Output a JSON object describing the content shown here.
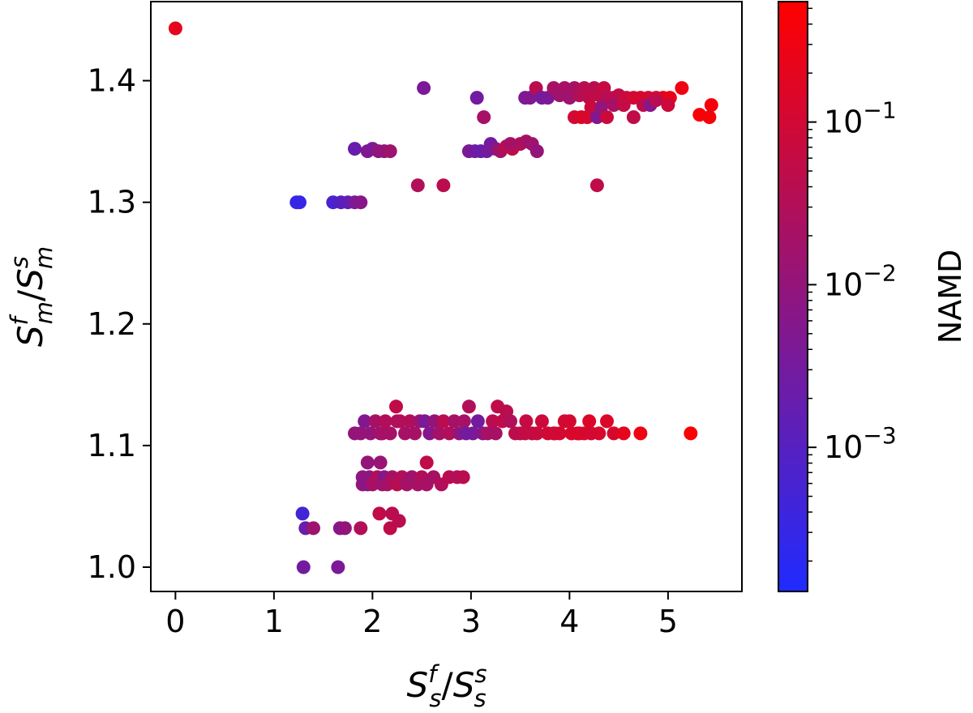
{
  "chart_data": {
    "type": "scatter",
    "xlabel": {
      "base": "S",
      "sup": "f",
      "sub": "s",
      "slash": "/",
      "base2": "S",
      "sup2": "s",
      "sub2": "s"
    },
    "ylabel": {
      "base": "S",
      "sup": "f",
      "sub": "m",
      "slash": "/",
      "base2": "S",
      "sup2": "s",
      "sub2": "m"
    },
    "xlim": [
      -0.25,
      5.75
    ],
    "ylim": [
      0.98,
      1.465
    ],
    "x_ticks": [
      0,
      1,
      2,
      3,
      4,
      5
    ],
    "x_tick_labels": [
      "0",
      "1",
      "2",
      "3",
      "4",
      "5"
    ],
    "y_ticks": [
      1.0,
      1.1,
      1.2,
      1.3,
      1.4
    ],
    "y_tick_labels": [
      "1.0",
      "1.1",
      "1.2",
      "1.3",
      "1.4"
    ],
    "grid": false,
    "colorbar": {
      "label": "NAMD",
      "scale": "log",
      "range": [
        0.00013,
        0.55
      ],
      "ticks": [
        0.001,
        0.01,
        0.1
      ],
      "tick_labels": [
        {
          "base": "10",
          "exp": "−3"
        },
        {
          "base": "10",
          "exp": "−2"
        },
        {
          "base": "10",
          "exp": "−1"
        }
      ],
      "color_low": "#1f2bff",
      "color_high": "#ff0000"
    },
    "points": [
      {
        "x": 0.0,
        "y": 1.443,
        "c": 0.2
      },
      {
        "x": 1.23,
        "y": 1.3,
        "c": 0.0003
      },
      {
        "x": 1.26,
        "y": 1.3,
        "c": 0.0003
      },
      {
        "x": 1.6,
        "y": 1.3,
        "c": 0.0006
      },
      {
        "x": 1.68,
        "y": 1.3,
        "c": 0.001
      },
      {
        "x": 1.75,
        "y": 1.3,
        "c": 0.0015
      },
      {
        "x": 1.82,
        "y": 1.3,
        "c": 0.004
      },
      {
        "x": 1.88,
        "y": 1.3,
        "c": 0.006
      },
      {
        "x": 1.82,
        "y": 1.344,
        "c": 0.002
      },
      {
        "x": 1.95,
        "y": 1.342,
        "c": 0.005
      },
      {
        "x": 2.0,
        "y": 1.344,
        "c": 0.004
      },
      {
        "x": 2.06,
        "y": 1.342,
        "c": 0.009
      },
      {
        "x": 2.12,
        "y": 1.342,
        "c": 0.01
      },
      {
        "x": 2.18,
        "y": 1.342,
        "c": 0.015
      },
      {
        "x": 2.46,
        "y": 1.314,
        "c": 0.03
      },
      {
        "x": 2.72,
        "y": 1.314,
        "c": 0.04
      },
      {
        "x": 2.52,
        "y": 1.394,
        "c": 0.004
      },
      {
        "x": 3.06,
        "y": 1.386,
        "c": 0.003
      },
      {
        "x": 3.13,
        "y": 1.37,
        "c": 0.02
      },
      {
        "x": 2.98,
        "y": 1.342,
        "c": 0.004
      },
      {
        "x": 3.04,
        "y": 1.342,
        "c": 0.003
      },
      {
        "x": 3.1,
        "y": 1.342,
        "c": 0.002
      },
      {
        "x": 3.16,
        "y": 1.342,
        "c": 0.003
      },
      {
        "x": 3.2,
        "y": 1.348,
        "c": 0.003
      },
      {
        "x": 3.25,
        "y": 1.344,
        "c": 0.006
      },
      {
        "x": 3.3,
        "y": 1.342,
        "c": 0.02
      },
      {
        "x": 3.36,
        "y": 1.346,
        "c": 0.04
      },
      {
        "x": 3.42,
        "y": 1.344,
        "c": 0.05
      },
      {
        "x": 3.5,
        "y": 1.348,
        "c": 0.03
      },
      {
        "x": 3.56,
        "y": 1.35,
        "c": 0.02
      },
      {
        "x": 3.62,
        "y": 1.348,
        "c": 0.015
      },
      {
        "x": 3.4,
        "y": 1.348,
        "c": 0.02
      },
      {
        "x": 3.67,
        "y": 1.342,
        "c": 0.01
      },
      {
        "x": 4.28,
        "y": 1.314,
        "c": 0.05
      },
      {
        "x": 3.55,
        "y": 1.386,
        "c": 0.004
      },
      {
        "x": 3.6,
        "y": 1.386,
        "c": 0.005
      },
      {
        "x": 3.66,
        "y": 1.394,
        "c": 0.04
      },
      {
        "x": 3.72,
        "y": 1.386,
        "c": 0.003
      },
      {
        "x": 3.78,
        "y": 1.386,
        "c": 0.004
      },
      {
        "x": 3.84,
        "y": 1.394,
        "c": 0.02
      },
      {
        "x": 3.9,
        "y": 1.388,
        "c": 0.015
      },
      {
        "x": 3.95,
        "y": 1.394,
        "c": 0.02
      },
      {
        "x": 4.0,
        "y": 1.386,
        "c": 0.015
      },
      {
        "x": 4.05,
        "y": 1.394,
        "c": 0.02
      },
      {
        "x": 4.1,
        "y": 1.388,
        "c": 0.03
      },
      {
        "x": 4.15,
        "y": 1.394,
        "c": 0.04
      },
      {
        "x": 4.2,
        "y": 1.386,
        "c": 0.05
      },
      {
        "x": 4.25,
        "y": 1.394,
        "c": 0.04
      },
      {
        "x": 4.3,
        "y": 1.388,
        "c": 0.05
      },
      {
        "x": 4.35,
        "y": 1.394,
        "c": 0.06
      },
      {
        "x": 4.4,
        "y": 1.386,
        "c": 0.03
      },
      {
        "x": 4.45,
        "y": 1.386,
        "c": 0.04
      },
      {
        "x": 4.5,
        "y": 1.388,
        "c": 0.05
      },
      {
        "x": 4.58,
        "y": 1.386,
        "c": 0.08
      },
      {
        "x": 4.65,
        "y": 1.386,
        "c": 0.1
      },
      {
        "x": 4.72,
        "y": 1.386,
        "c": 0.12
      },
      {
        "x": 4.8,
        "y": 1.386,
        "c": 0.1
      },
      {
        "x": 4.88,
        "y": 1.386,
        "c": 0.15
      },
      {
        "x": 4.95,
        "y": 1.386,
        "c": 0.2
      },
      {
        "x": 5.02,
        "y": 1.386,
        "c": 0.25
      },
      {
        "x": 5.14,
        "y": 1.394,
        "c": 0.3
      },
      {
        "x": 4.05,
        "y": 1.37,
        "c": 0.1
      },
      {
        "x": 4.12,
        "y": 1.37,
        "c": 0.15
      },
      {
        "x": 4.18,
        "y": 1.37,
        "c": 0.12
      },
      {
        "x": 4.22,
        "y": 1.378,
        "c": 0.08
      },
      {
        "x": 4.28,
        "y": 1.37,
        "c": 0.005
      },
      {
        "x": 4.32,
        "y": 1.378,
        "c": 0.01
      },
      {
        "x": 4.38,
        "y": 1.37,
        "c": 0.08
      },
      {
        "x": 4.45,
        "y": 1.38,
        "c": 0.02
      },
      {
        "x": 4.55,
        "y": 1.38,
        "c": 0.06
      },
      {
        "x": 4.65,
        "y": 1.37,
        "c": 0.05
      },
      {
        "x": 4.75,
        "y": 1.38,
        "c": 0.05
      },
      {
        "x": 4.82,
        "y": 1.38,
        "c": 0.006
      },
      {
        "x": 4.88,
        "y": 1.384,
        "c": 0.04
      },
      {
        "x": 5.0,
        "y": 1.38,
        "c": 0.08
      },
      {
        "x": 5.32,
        "y": 1.372,
        "c": 0.45
      },
      {
        "x": 5.42,
        "y": 1.37,
        "c": 0.4
      },
      {
        "x": 5.44,
        "y": 1.38,
        "c": 0.35
      },
      {
        "x": 1.29,
        "y": 1.044,
        "c": 0.0005
      },
      {
        "x": 1.32,
        "y": 1.032,
        "c": 0.002
      },
      {
        "x": 1.4,
        "y": 1.032,
        "c": 0.015
      },
      {
        "x": 1.3,
        "y": 1.0,
        "c": 0.003
      },
      {
        "x": 1.65,
        "y": 1.0,
        "c": 0.004
      },
      {
        "x": 1.67,
        "y": 1.032,
        "c": 0.006
      },
      {
        "x": 1.72,
        "y": 1.032,
        "c": 0.01
      },
      {
        "x": 1.88,
        "y": 1.032,
        "c": 0.03
      },
      {
        "x": 2.07,
        "y": 1.044,
        "c": 0.05
      },
      {
        "x": 2.2,
        "y": 1.044,
        "c": 0.04
      },
      {
        "x": 2.18,
        "y": 1.032,
        "c": 0.05
      },
      {
        "x": 2.27,
        "y": 1.038,
        "c": 0.04
      },
      {
        "x": 1.9,
        "y": 1.068,
        "c": 0.01
      },
      {
        "x": 1.9,
        "y": 1.074,
        "c": 0.008
      },
      {
        "x": 1.95,
        "y": 1.068,
        "c": 0.006
      },
      {
        "x": 1.97,
        "y": 1.074,
        "c": 0.008
      },
      {
        "x": 1.95,
        "y": 1.086,
        "c": 0.01
      },
      {
        "x": 2.0,
        "y": 1.068,
        "c": 0.02
      },
      {
        "x": 2.05,
        "y": 1.074,
        "c": 0.03
      },
      {
        "x": 2.1,
        "y": 1.068,
        "c": 0.015
      },
      {
        "x": 2.08,
        "y": 1.086,
        "c": 0.012
      },
      {
        "x": 2.12,
        "y": 1.074,
        "c": 0.006
      },
      {
        "x": 2.15,
        "y": 1.068,
        "c": 0.02
      },
      {
        "x": 2.2,
        "y": 1.074,
        "c": 0.02
      },
      {
        "x": 2.25,
        "y": 1.068,
        "c": 0.04
      },
      {
        "x": 2.3,
        "y": 1.074,
        "c": 0.03
      },
      {
        "x": 2.35,
        "y": 1.068,
        "c": 0.02
      },
      {
        "x": 2.4,
        "y": 1.074,
        "c": 0.015
      },
      {
        "x": 2.46,
        "y": 1.068,
        "c": 0.02
      },
      {
        "x": 2.5,
        "y": 1.074,
        "c": 0.03
      },
      {
        "x": 2.55,
        "y": 1.086,
        "c": 0.05
      },
      {
        "x": 2.55,
        "y": 1.068,
        "c": 0.02
      },
      {
        "x": 2.62,
        "y": 1.074,
        "c": 0.02
      },
      {
        "x": 2.7,
        "y": 1.068,
        "c": 0.03
      },
      {
        "x": 2.78,
        "y": 1.074,
        "c": 0.04
      },
      {
        "x": 2.86,
        "y": 1.074,
        "c": 0.03
      },
      {
        "x": 2.92,
        "y": 1.074,
        "c": 0.04
      },
      {
        "x": 1.82,
        "y": 1.11,
        "c": 0.01
      },
      {
        "x": 1.88,
        "y": 1.11,
        "c": 0.01
      },
      {
        "x": 1.92,
        "y": 1.12,
        "c": 0.005
      },
      {
        "x": 1.98,
        "y": 1.11,
        "c": 0.01
      },
      {
        "x": 2.03,
        "y": 1.12,
        "c": 0.02
      },
      {
        "x": 2.08,
        "y": 1.11,
        "c": 0.015
      },
      {
        "x": 2.13,
        "y": 1.12,
        "c": 0.03
      },
      {
        "x": 2.18,
        "y": 1.11,
        "c": 0.02
      },
      {
        "x": 2.24,
        "y": 1.132,
        "c": 0.05
      },
      {
        "x": 2.28,
        "y": 1.12,
        "c": 0.04
      },
      {
        "x": 2.33,
        "y": 1.11,
        "c": 0.02
      },
      {
        "x": 2.38,
        "y": 1.12,
        "c": 0.03
      },
      {
        "x": 2.43,
        "y": 1.11,
        "c": 0.02
      },
      {
        "x": 2.48,
        "y": 1.12,
        "c": 0.015
      },
      {
        "x": 2.53,
        "y": 1.12,
        "c": 0.004
      },
      {
        "x": 2.58,
        "y": 1.11,
        "c": 0.006
      },
      {
        "x": 2.63,
        "y": 1.12,
        "c": 0.01
      },
      {
        "x": 2.68,
        "y": 1.11,
        "c": 0.02
      },
      {
        "x": 2.72,
        "y": 1.12,
        "c": 0.04
      },
      {
        "x": 2.78,
        "y": 1.11,
        "c": 0.03
      },
      {
        "x": 2.83,
        "y": 1.12,
        "c": 0.02
      },
      {
        "x": 2.88,
        "y": 1.11,
        "c": 0.01
      },
      {
        "x": 2.93,
        "y": 1.12,
        "c": 0.02
      },
      {
        "x": 2.98,
        "y": 1.132,
        "c": 0.03
      },
      {
        "x": 3.02,
        "y": 1.11,
        "c": 0.004
      },
      {
        "x": 3.07,
        "y": 1.12,
        "c": 0.003
      },
      {
        "x": 3.12,
        "y": 1.11,
        "c": 0.006
      },
      {
        "x": 3.17,
        "y": 1.11,
        "c": 0.02
      },
      {
        "x": 3.22,
        "y": 1.12,
        "c": 0.04
      },
      {
        "x": 3.27,
        "y": 1.132,
        "c": 0.05
      },
      {
        "x": 3.32,
        "y": 1.12,
        "c": 0.05
      },
      {
        "x": 3.36,
        "y": 1.128,
        "c": 0.04
      },
      {
        "x": 3.4,
        "y": 1.12,
        "c": 0.03
      },
      {
        "x": 3.45,
        "y": 1.11,
        "c": 0.05
      },
      {
        "x": 3.5,
        "y": 1.11,
        "c": 0.04
      },
      {
        "x": 3.56,
        "y": 1.12,
        "c": 0.06
      },
      {
        "x": 3.62,
        "y": 1.11,
        "c": 0.05
      },
      {
        "x": 3.67,
        "y": 1.11,
        "c": 0.07
      },
      {
        "x": 3.72,
        "y": 1.12,
        "c": 0.08
      },
      {
        "x": 3.78,
        "y": 1.11,
        "c": 0.1
      },
      {
        "x": 3.84,
        "y": 1.11,
        "c": 0.09
      },
      {
        "x": 3.9,
        "y": 1.11,
        "c": 0.12
      },
      {
        "x": 3.95,
        "y": 1.12,
        "c": 0.1
      },
      {
        "x": 4.02,
        "y": 1.11,
        "c": 0.12
      },
      {
        "x": 4.08,
        "y": 1.11,
        "c": 0.15
      },
      {
        "x": 4.15,
        "y": 1.11,
        "c": 0.14
      },
      {
        "x": 4.22,
        "y": 1.11,
        "c": 0.1
      },
      {
        "x": 4.3,
        "y": 1.11,
        "c": 0.12
      },
      {
        "x": 4.38,
        "y": 1.12,
        "c": 0.15
      },
      {
        "x": 4.45,
        "y": 1.11,
        "c": 0.12
      },
      {
        "x": 4.55,
        "y": 1.11,
        "c": 0.2
      },
      {
        "x": 4.72,
        "y": 1.11,
        "c": 0.3
      },
      {
        "x": 5.23,
        "y": 1.11,
        "c": 0.45
      },
      {
        "x": 2.1,
        "y": 1.11,
        "c": 0.02
      },
      {
        "x": 2.25,
        "y": 1.12,
        "c": 0.03
      },
      {
        "x": 2.95,
        "y": 1.11,
        "c": 0.003
      },
      {
        "x": 3.25,
        "y": 1.11,
        "c": 0.02
      },
      {
        "x": 3.55,
        "y": 1.11,
        "c": 0.06
      },
      {
        "x": 3.85,
        "y": 1.11,
        "c": 0.1
      },
      {
        "x": 4.0,
        "y": 1.12,
        "c": 0.11
      },
      {
        "x": 4.1,
        "y": 1.11,
        "c": 0.13
      },
      {
        "x": 4.2,
        "y": 1.12,
        "c": 0.15
      }
    ]
  }
}
